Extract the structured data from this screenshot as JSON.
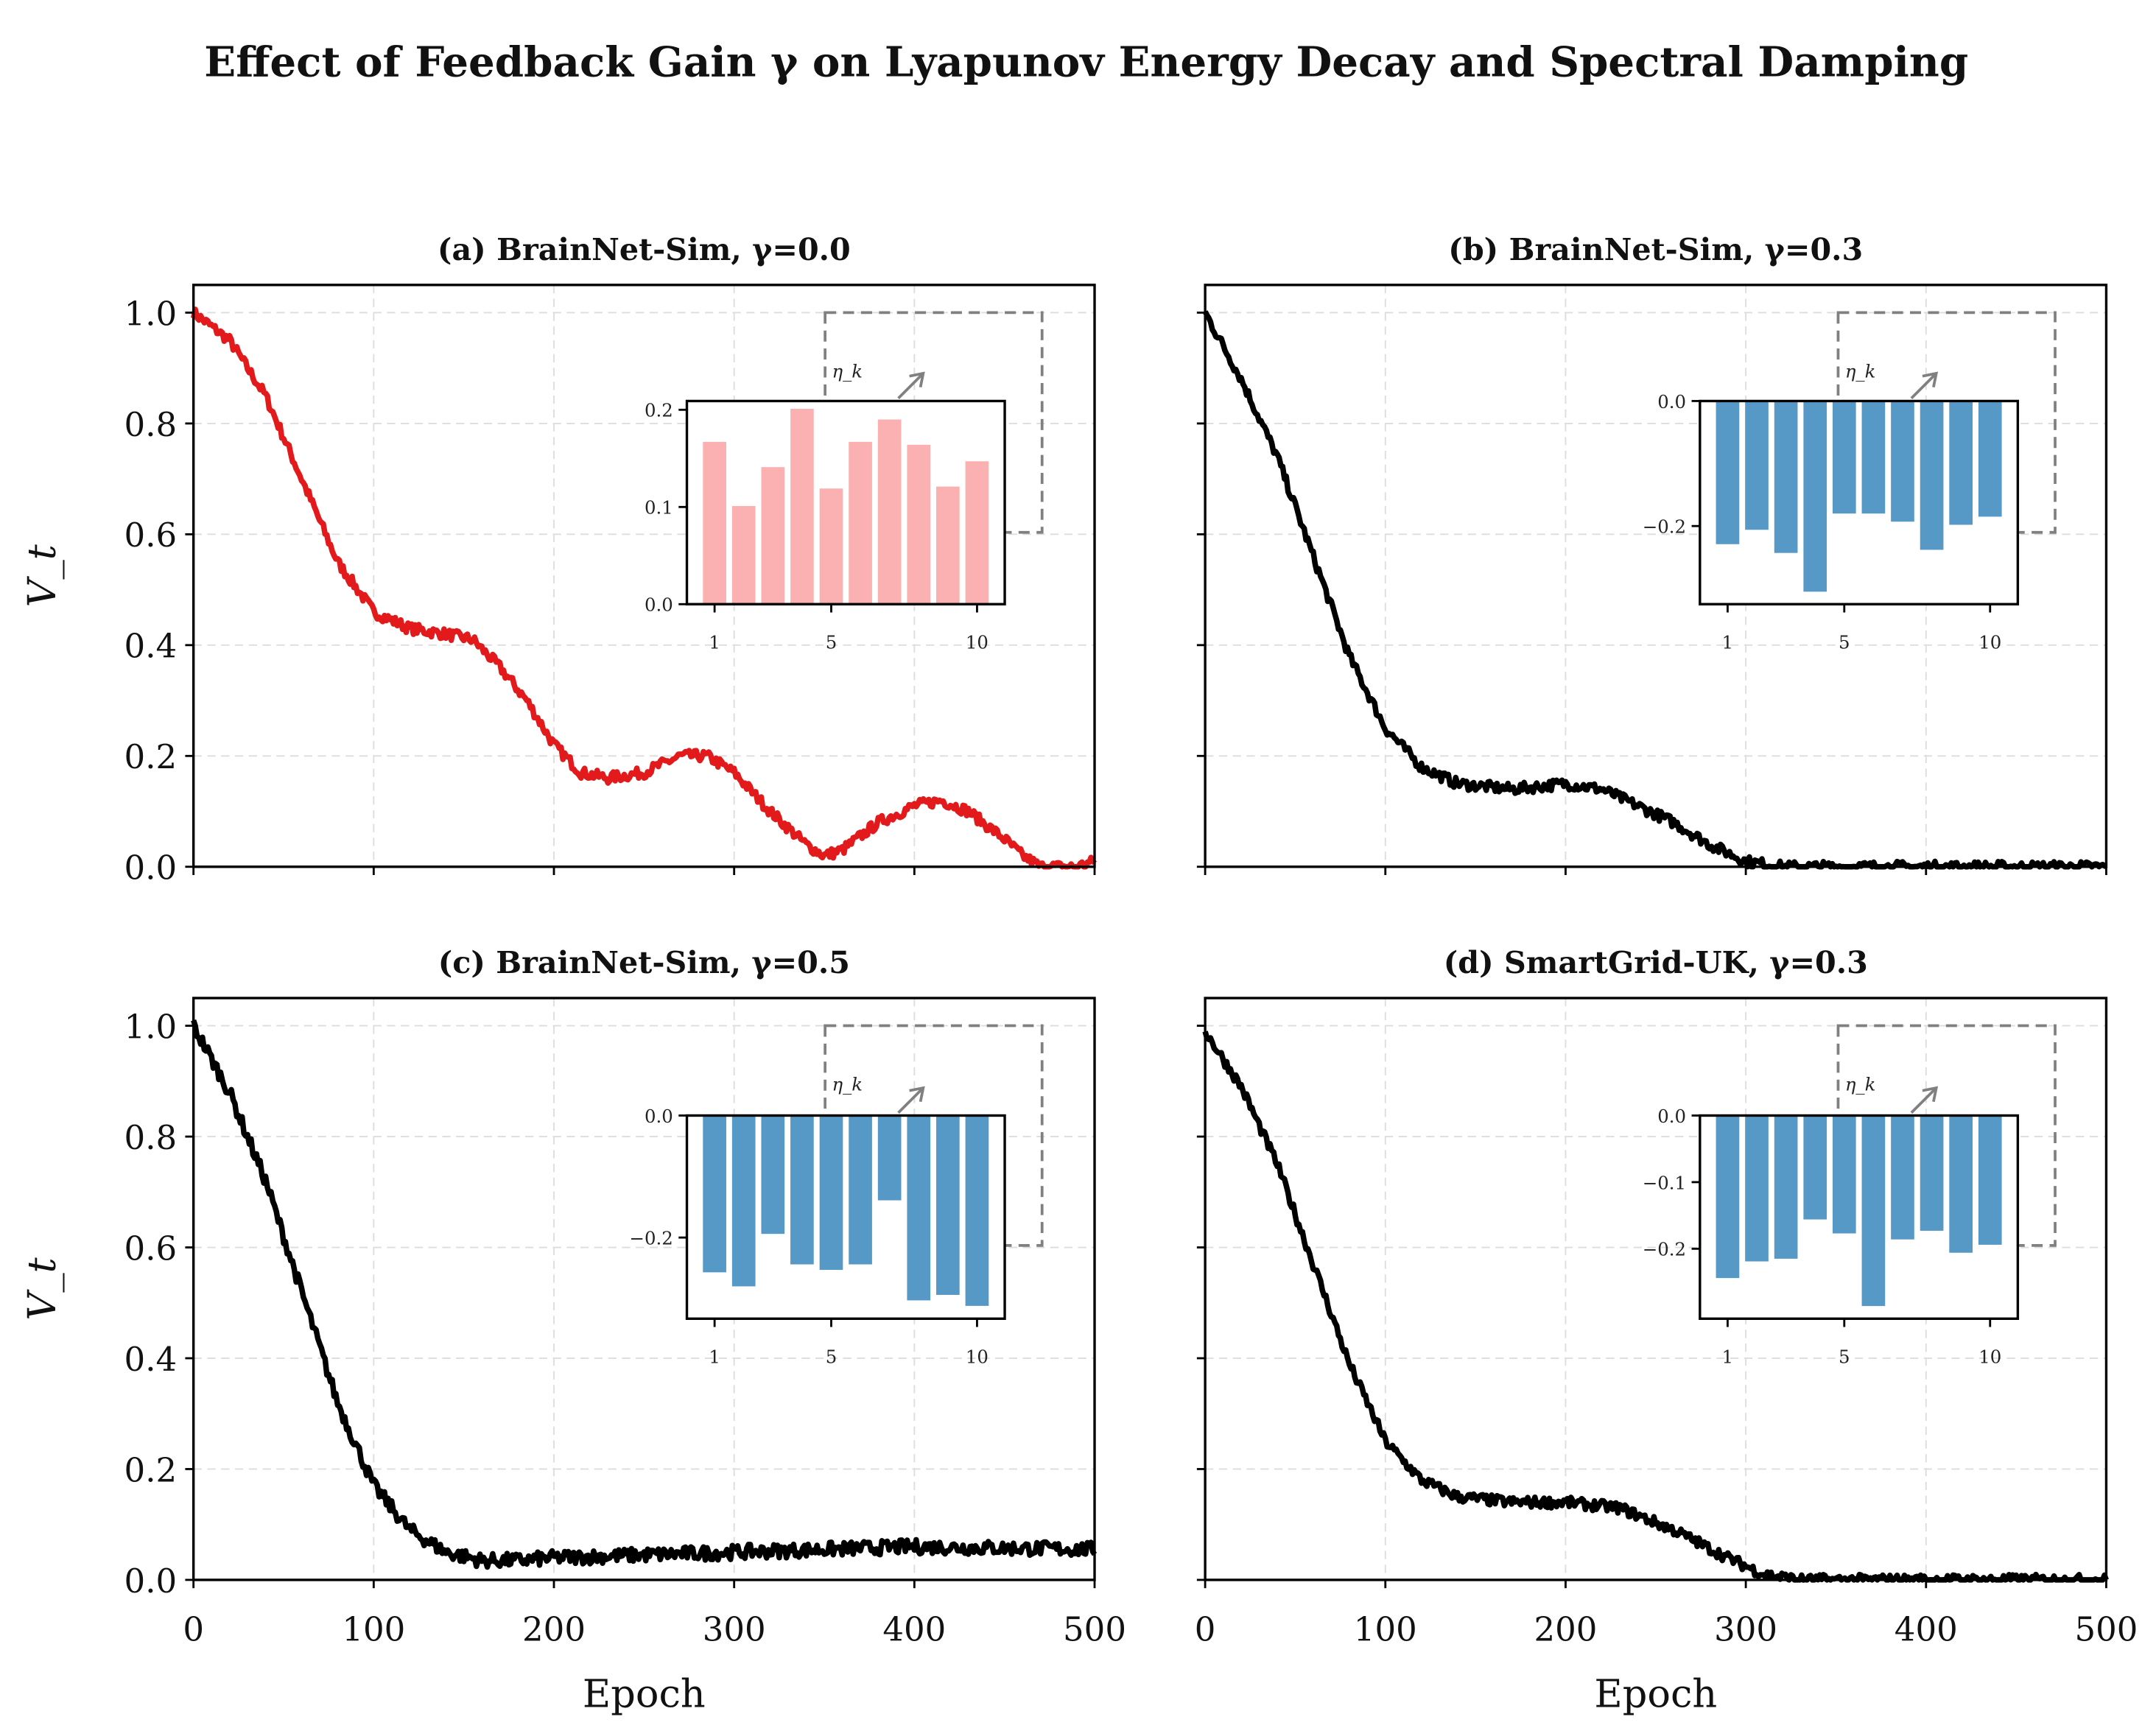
{
  "figure": {
    "title": "Effect of Feedback Gain γ on Lyapunov Energy Decay and Spectral Damping",
    "xlabel": "Epoch",
    "ylabel": "V_t",
    "inset_label": "η_k"
  },
  "colors": {
    "red": "#e31a1c",
    "black": "#000000",
    "pink": "#fbb1b1",
    "blue": "#5799c6",
    "grid": "#dddddd",
    "dashed_box": "#808080"
  },
  "chart_data": [
    {
      "type": "line",
      "title": "(a) BrainNet-Sim, γ=0.0",
      "color": "#e31a1c",
      "xlim": [
        0,
        500
      ],
      "ylim": [
        0,
        1.05
      ],
      "xticks": [
        0,
        100,
        200,
        300,
        400,
        500
      ],
      "yticks": [
        0.0,
        0.2,
        0.4,
        0.6,
        0.8,
        1.0
      ],
      "noise": 0.01,
      "points": [
        [
          0,
          1.0
        ],
        [
          20,
          0.95
        ],
        [
          40,
          0.85
        ],
        [
          60,
          0.7
        ],
        [
          80,
          0.55
        ],
        [
          100,
          0.46
        ],
        [
          120,
          0.43
        ],
        [
          140,
          0.42
        ],
        [
          155,
          0.41
        ],
        [
          170,
          0.36
        ],
        [
          185,
          0.3
        ],
        [
          200,
          0.22
        ],
        [
          215,
          0.17
        ],
        [
          230,
          0.16
        ],
        [
          250,
          0.17
        ],
        [
          270,
          0.2
        ],
        [
          285,
          0.2
        ],
        [
          300,
          0.17
        ],
        [
          320,
          0.1
        ],
        [
          340,
          0.04
        ],
        [
          350,
          0.02
        ],
        [
          360,
          0.03
        ],
        [
          380,
          0.08
        ],
        [
          400,
          0.11
        ],
        [
          415,
          0.12
        ],
        [
          430,
          0.1
        ],
        [
          450,
          0.05
        ],
        [
          460,
          0.02
        ],
        [
          470,
          0.0
        ],
        [
          490,
          0.0
        ],
        [
          500,
          0.01
        ]
      ],
      "inset": {
        "type": "bar",
        "color": "#fbb1b1",
        "categories": [
          1,
          2,
          3,
          4,
          5,
          6,
          7,
          8,
          9,
          10
        ],
        "values": [
          0.167,
          0.101,
          0.141,
          0.201,
          0.119,
          0.167,
          0.19,
          0.164,
          0.121,
          0.147
        ],
        "ylim": [
          0,
          0.209
        ],
        "yticks": [
          0.0,
          0.1,
          0.2
        ],
        "ytick_labels": [
          "0.0",
          "0.1",
          "0.2"
        ],
        "xticks": [
          1,
          5,
          10
        ]
      }
    },
    {
      "type": "line",
      "title": "(b) BrainNet-Sim, γ=0.3",
      "color": "#000000",
      "xlim": [
        0,
        500
      ],
      "ylim": [
        0,
        1.05
      ],
      "xticks": [
        0,
        100,
        200,
        300,
        400,
        500
      ],
      "yticks": [
        0.0,
        0.2,
        0.4,
        0.6,
        0.8,
        1.0
      ],
      "noise": 0.01,
      "points": [
        [
          0,
          1.0
        ],
        [
          20,
          0.88
        ],
        [
          40,
          0.74
        ],
        [
          60,
          0.56
        ],
        [
          80,
          0.38
        ],
        [
          100,
          0.25
        ],
        [
          120,
          0.18
        ],
        [
          140,
          0.15
        ],
        [
          170,
          0.14
        ],
        [
          200,
          0.15
        ],
        [
          220,
          0.14
        ],
        [
          240,
          0.11
        ],
        [
          260,
          0.08
        ],
        [
          280,
          0.04
        ],
        [
          300,
          0.01
        ],
        [
          320,
          0.0
        ],
        [
          500,
          0.0
        ]
      ],
      "inset": {
        "type": "bar",
        "color": "#5799c6",
        "categories": [
          1,
          2,
          3,
          4,
          5,
          6,
          7,
          8,
          9,
          10
        ],
        "values": [
          -0.229,
          -0.206,
          -0.243,
          -0.305,
          -0.18,
          -0.18,
          -0.193,
          -0.238,
          -0.198,
          -0.185
        ],
        "ylim": [
          -0.325,
          0
        ],
        "yticks": [
          0.0,
          -0.2
        ],
        "ytick_labels": [
          "0.0",
          "−0.2"
        ],
        "xticks": [
          1,
          5,
          10
        ]
      }
    },
    {
      "type": "line",
      "title": "(c) BrainNet-Sim, γ=0.5",
      "color": "#000000",
      "xlim": [
        0,
        500
      ],
      "ylim": [
        0,
        1.05
      ],
      "xticks": [
        0,
        100,
        200,
        300,
        400,
        500
      ],
      "yticks": [
        0.0,
        0.2,
        0.4,
        0.6,
        0.8,
        1.0
      ],
      "noise": 0.013,
      "points": [
        [
          0,
          1.0
        ],
        [
          20,
          0.88
        ],
        [
          40,
          0.72
        ],
        [
          60,
          0.52
        ],
        [
          80,
          0.32
        ],
        [
          100,
          0.17
        ],
        [
          120,
          0.09
        ],
        [
          140,
          0.05
        ],
        [
          160,
          0.035
        ],
        [
          180,
          0.035
        ],
        [
          200,
          0.04
        ],
        [
          300,
          0.05
        ],
        [
          400,
          0.06
        ],
        [
          500,
          0.055
        ]
      ],
      "inset": {
        "type": "bar",
        "color": "#5799c6",
        "categories": [
          1,
          2,
          3,
          4,
          5,
          6,
          7,
          8,
          9,
          10
        ],
        "values": [
          -0.257,
          -0.28,
          -0.194,
          -0.244,
          -0.253,
          -0.244,
          -0.139,
          -0.303,
          -0.294,
          -0.312
        ],
        "ylim": [
          -0.333,
          0
        ],
        "yticks": [
          0.0,
          -0.2
        ],
        "ytick_labels": [
          "0.0",
          "−0.2"
        ],
        "xticks": [
          1,
          5,
          10
        ]
      }
    },
    {
      "type": "line",
      "title": "(d) SmartGrid-UK, γ=0.3",
      "color": "#000000",
      "xlim": [
        0,
        500
      ],
      "ylim": [
        0,
        1.05
      ],
      "xticks": [
        0,
        100,
        200,
        300,
        400,
        500
      ],
      "yticks": [
        0.0,
        0.2,
        0.4,
        0.6,
        0.8,
        1.0
      ],
      "noise": 0.01,
      "points": [
        [
          0,
          0.99
        ],
        [
          20,
          0.89
        ],
        [
          40,
          0.75
        ],
        [
          60,
          0.57
        ],
        [
          80,
          0.39
        ],
        [
          100,
          0.25
        ],
        [
          120,
          0.18
        ],
        [
          140,
          0.15
        ],
        [
          170,
          0.14
        ],
        [
          200,
          0.14
        ],
        [
          230,
          0.13
        ],
        [
          260,
          0.09
        ],
        [
          290,
          0.04
        ],
        [
          310,
          0.01
        ],
        [
          330,
          0.0
        ],
        [
          500,
          0.0
        ]
      ],
      "inset": {
        "type": "bar",
        "color": "#5799c6",
        "categories": [
          1,
          2,
          3,
          4,
          5,
          6,
          7,
          8,
          9,
          10
        ],
        "values": [
          -0.244,
          -0.219,
          -0.215,
          -0.156,
          -0.177,
          -0.286,
          -0.186,
          -0.173,
          -0.206,
          -0.194
        ],
        "ylim": [
          -0.305,
          0
        ],
        "yticks": [
          0.0,
          -0.1,
          -0.2
        ],
        "ytick_labels": [
          "0.0",
          "−0.1",
          "−0.2"
        ],
        "xticks": [
          1,
          5,
          10
        ]
      }
    }
  ]
}
